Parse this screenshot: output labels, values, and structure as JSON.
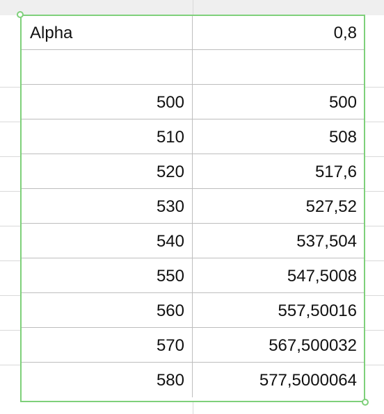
{
  "table": {
    "header": {
      "label": "Alpha",
      "value": "0,8"
    },
    "rows": [
      {
        "a": "",
        "b": ""
      },
      {
        "a": "500",
        "b": "500"
      },
      {
        "a": "510",
        "b": "508"
      },
      {
        "a": "520",
        "b": "517,6"
      },
      {
        "a": "530",
        "b": "527,52"
      },
      {
        "a": "540",
        "b": "537,504"
      },
      {
        "a": "550",
        "b": "547,5008"
      },
      {
        "a": "560",
        "b": "557,50016"
      },
      {
        "a": "570",
        "b": "567,500032"
      },
      {
        "a": "580",
        "b": "577,5000064"
      }
    ]
  },
  "colors": {
    "selection": "#7ed07a",
    "grid": "#bdbdbd",
    "header_strip": "#efefef"
  }
}
